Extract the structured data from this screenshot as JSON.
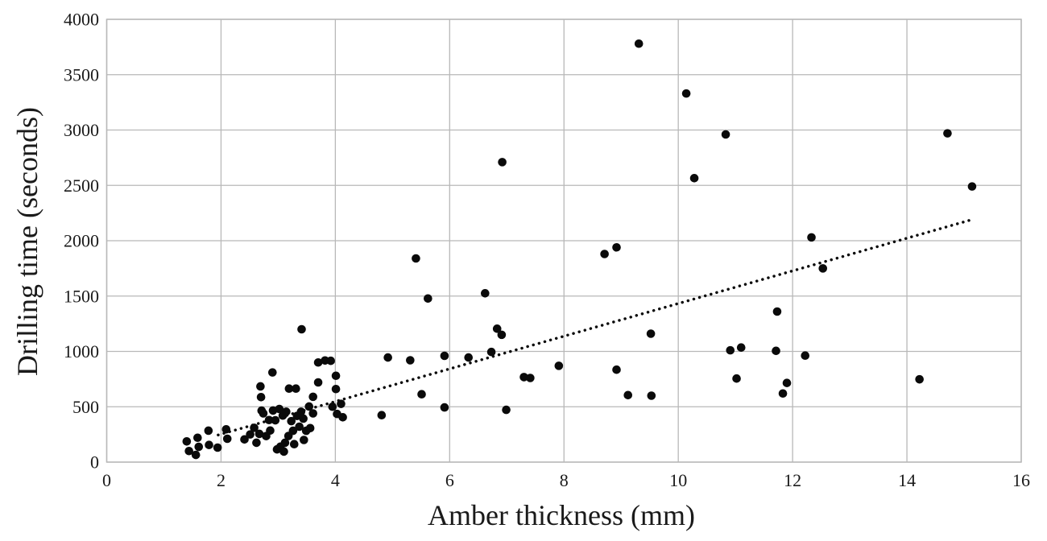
{
  "figure": {
    "background_color": "#ffffff",
    "text_color": "#1a1a1a",
    "gridline_color": "#b8b8b8",
    "marker_color": "#0a0a0a"
  },
  "chart_data": {
    "type": "scatter",
    "title": "",
    "xlabel": "Amber thickness (mm)",
    "ylabel": "Drilling time (seconds)",
    "xlim": [
      0,
      16
    ],
    "ylim": [
      0,
      4000
    ],
    "x_ticks": [
      0,
      2,
      4,
      6,
      8,
      10,
      12,
      14,
      16
    ],
    "y_ticks": [
      0,
      500,
      1000,
      1500,
      2000,
      2500,
      3000,
      3500,
      4000
    ],
    "grid": "on",
    "legend": "none",
    "marker": "filled-black-circle",
    "points": [
      [
        1.4,
        187
      ],
      [
        1.44,
        100
      ],
      [
        1.56,
        65
      ],
      [
        1.59,
        220
      ],
      [
        1.61,
        138
      ],
      [
        1.78,
        284
      ],
      [
        1.79,
        155
      ],
      [
        1.94,
        131
      ],
      [
        2.09,
        296
      ],
      [
        2.11,
        211
      ],
      [
        2.41,
        205
      ],
      [
        2.51,
        250
      ],
      [
        2.58,
        310
      ],
      [
        2.62,
        175
      ],
      [
        2.67,
        255
      ],
      [
        2.69,
        684
      ],
      [
        2.7,
        587
      ],
      [
        2.71,
        465
      ],
      [
        2.74,
        440
      ],
      [
        2.79,
        235
      ],
      [
        2.84,
        380
      ],
      [
        2.86,
        285
      ],
      [
        2.9,
        810
      ],
      [
        2.91,
        466
      ],
      [
        2.95,
        378
      ],
      [
        2.98,
        115
      ],
      [
        3.02,
        480
      ],
      [
        3.04,
        140
      ],
      [
        3.08,
        420
      ],
      [
        3.1,
        95
      ],
      [
        3.12,
        175
      ],
      [
        3.14,
        455
      ],
      [
        3.18,
        236
      ],
      [
        3.19,
        664
      ],
      [
        3.23,
        370
      ],
      [
        3.26,
        283
      ],
      [
        3.28,
        162
      ],
      [
        3.31,
        664
      ],
      [
        3.33,
        417
      ],
      [
        3.37,
        320
      ],
      [
        3.4,
        455
      ],
      [
        3.41,
        1200
      ],
      [
        3.44,
        393
      ],
      [
        3.45,
        200
      ],
      [
        3.49,
        283
      ],
      [
        3.54,
        502
      ],
      [
        3.56,
        307
      ],
      [
        3.61,
        590
      ],
      [
        3.61,
        440
      ],
      [
        3.7,
        900
      ],
      [
        3.7,
        720
      ],
      [
        3.82,
        918
      ],
      [
        3.92,
        915
      ],
      [
        3.95,
        500
      ],
      [
        4.01,
        780
      ],
      [
        4.01,
        660
      ],
      [
        4.03,
        435
      ],
      [
        4.1,
        526
      ],
      [
        4.13,
        405
      ],
      [
        4.81,
        424
      ],
      [
        4.92,
        945
      ],
      [
        5.31,
        920
      ],
      [
        5.41,
        1840
      ],
      [
        5.51,
        613
      ],
      [
        5.62,
        1478
      ],
      [
        5.91,
        960
      ],
      [
        5.91,
        494
      ],
      [
        6.33,
        945
      ],
      [
        6.62,
        1525
      ],
      [
        6.73,
        995
      ],
      [
        6.83,
        1205
      ],
      [
        6.91,
        1150
      ],
      [
        6.92,
        2710
      ],
      [
        6.99,
        472
      ],
      [
        7.3,
        768
      ],
      [
        7.41,
        760
      ],
      [
        7.91,
        870
      ],
      [
        8.71,
        1880
      ],
      [
        8.92,
        1940
      ],
      [
        8.92,
        835
      ],
      [
        9.12,
        605
      ],
      [
        9.31,
        3780
      ],
      [
        9.52,
        1160
      ],
      [
        9.53,
        600
      ],
      [
        10.14,
        3330
      ],
      [
        10.28,
        2565
      ],
      [
        10.83,
        2960
      ],
      [
        10.91,
        1010
      ],
      [
        11.02,
        755
      ],
      [
        11.1,
        1035
      ],
      [
        11.71,
        1005
      ],
      [
        11.73,
        1360
      ],
      [
        11.83,
        620
      ],
      [
        11.9,
        715
      ],
      [
        12.22,
        962
      ],
      [
        12.33,
        2030
      ],
      [
        12.53,
        1750
      ],
      [
        14.22,
        748
      ],
      [
        14.71,
        2970
      ],
      [
        15.14,
        2490
      ]
    ],
    "trendline": {
      "style": "dotted",
      "color": "#0a0a0a",
      "x_start": 1.95,
      "y_start": 245,
      "x_end": 15.1,
      "y_end": 2185
    }
  }
}
